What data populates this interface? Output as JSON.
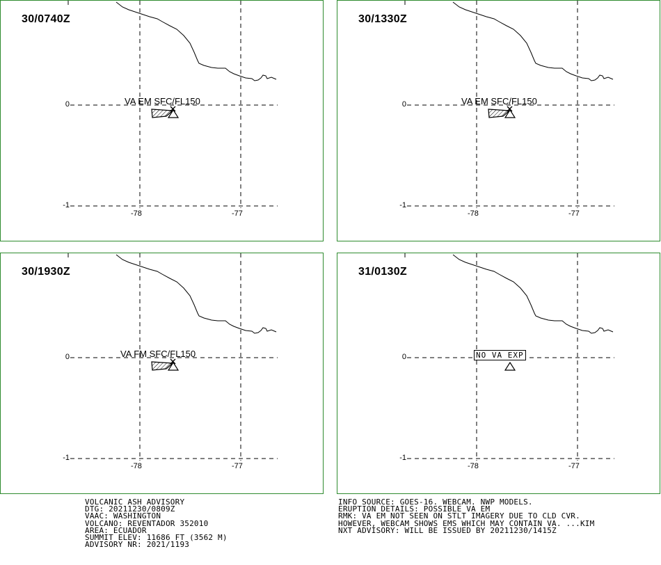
{
  "panels": [
    {
      "time": "30/0740Z",
      "label": "VA EM SFC/FL150",
      "boxed": false,
      "ash": true
    },
    {
      "time": "30/1330Z",
      "label": "VA EM SFC/FL150",
      "boxed": false,
      "ash": true
    },
    {
      "time": "30/1930Z",
      "label": "VA FM SFC/FL150",
      "boxed": false,
      "ash": true
    },
    {
      "time": "31/0130Z",
      "label": "NO VA EXP",
      "boxed": true,
      "ash": false
    }
  ],
  "axes": {
    "lat_ticks": [
      "0",
      "-1"
    ],
    "lon_ticks": [
      "-78",
      "-77"
    ]
  },
  "advisory_left": [
    "VOLCANIC ASH ADVISORY",
    "DTG: 20211230/0809Z",
    "VAAC: WASHINGTON",
    "VOLCANO: REVENTADOR 352010",
    "AREA: ECUADOR",
    "SUMMIT ELEV: 11686 FT (3562 M)",
    "ADVISORY NR: 2021/1193"
  ],
  "advisory_right": [
    "INFO SOURCE: GOES-16. WEBCAM. NWP MODELS.",
    "ERUPTION DETAILS: POSSIBLE VA EM",
    "RMK: VA EM NOT SEEN ON STLT IMAGERY DUE TO CLD CVR.",
    "HOWEVER, WEBCAM SHOWS EMS WHICH MAY CONTAIN VA. ...KIM",
    "NXT ADVISORY: WILL BE ISSUED BY 20211230/1415Z"
  ],
  "colors": {
    "border": "#2e8b2e",
    "lines": "#000000"
  }
}
